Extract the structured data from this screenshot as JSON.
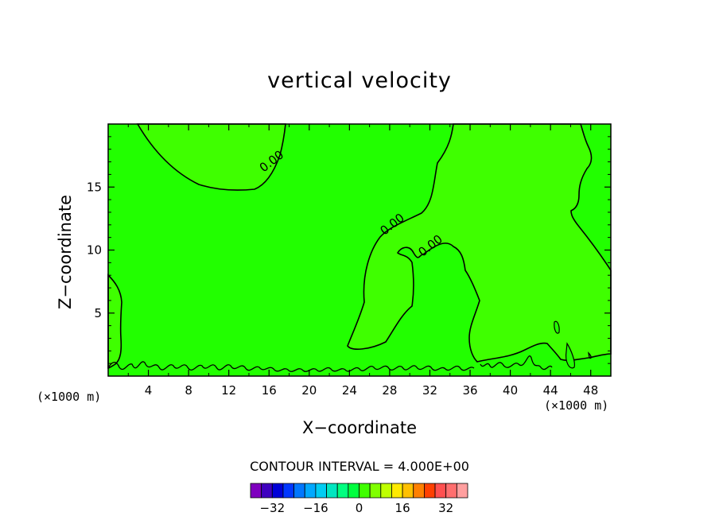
{
  "chart_data": {
    "type": "heatmap",
    "title": "vertical velocity",
    "xlabel": "X−coordinate",
    "ylabel": "Z−coordinate",
    "x_unit_left": "(×1000 m)",
    "x_unit_right": "(×1000 m)",
    "xlim": [
      0,
      50
    ],
    "ylim": [
      0,
      20
    ],
    "x_ticks": [
      4,
      8,
      12,
      16,
      20,
      24,
      28,
      32,
      36,
      40,
      44,
      48
    ],
    "y_ticks": [
      5,
      10,
      15
    ],
    "contour_labels": [
      {
        "text": "0.00",
        "x": 16.5,
        "y": 16.8
      },
      {
        "text": "0.00",
        "x": 28.5,
        "y": 11.8
      },
      {
        "text": "0.00",
        "x": 32.3,
        "y": 10.1
      }
    ],
    "contour_interval_text": "CONTOUR INTERVAL = 4.000E+00",
    "colorbar": {
      "levels": [
        -36,
        -32,
        -28,
        -24,
        -20,
        -16,
        -12,
        -8,
        -4,
        0,
        4,
        8,
        12,
        16,
        20,
        24,
        28,
        32,
        36
      ],
      "tick_labels": [
        "−32",
        "−16",
        "0",
        "16",
        "32"
      ],
      "tick_values": [
        -32,
        -16,
        0,
        16,
        32
      ],
      "colors": [
        "#7f00bf",
        "#3f00bf",
        "#0000d8",
        "#0037ff",
        "#0077ff",
        "#00a8ff",
        "#00ccf2",
        "#00e6c0",
        "#00ff80",
        "#00ff3f",
        "#3fff00",
        "#80ff00",
        "#bfff00",
        "#ffea00",
        "#ffc000",
        "#ff8000",
        "#ff4000",
        "#ff5050",
        "#ff6f6f",
        "#ff9f9f"
      ]
    },
    "fill_colors": {
      "near_zero_negative": "#3fff00",
      "near_zero_positive": "#22ff00"
    }
  }
}
